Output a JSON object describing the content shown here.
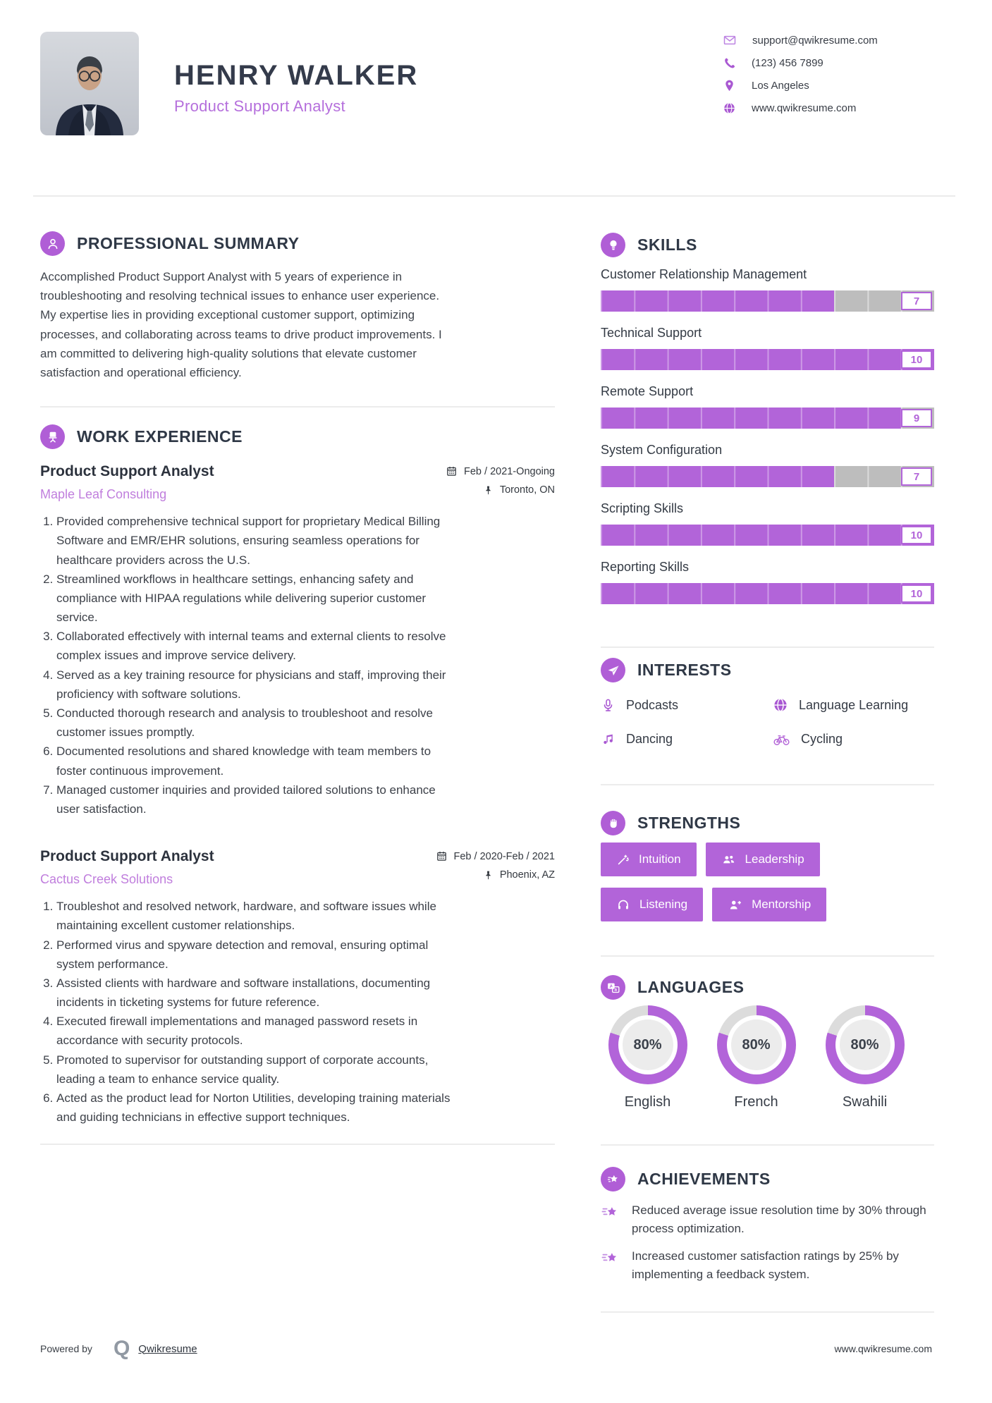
{
  "header": {
    "name": "HENRY WALKER",
    "title": "Product Support Analyst",
    "contacts": [
      {
        "icon": "email-icon",
        "text": "support@qwikresume.com"
      },
      {
        "icon": "phone-icon",
        "text": "(123) 456 7899"
      },
      {
        "icon": "location-icon",
        "text": "Los Angeles"
      },
      {
        "icon": "website-icon",
        "text": "www.qwikresume.com"
      }
    ]
  },
  "summary": {
    "heading": "PROFESSIONAL SUMMARY",
    "text": "Accomplished Product Support Analyst with 5 years of experience in troubleshooting and resolving technical issues to enhance user experience. My expertise lies in providing exceptional customer support, optimizing processes, and collaborating across teams to drive product improvements. I am committed to delivering high-quality solutions that elevate customer satisfaction and operational efficiency."
  },
  "work": {
    "heading": "WORK EXPERIENCE",
    "jobs": [
      {
        "title": "Product Support Analyst",
        "company": "Maple Leaf Consulting",
        "date": "Feb / 2021-Ongoing",
        "location": "Toronto, ON",
        "bullets": [
          "Provided comprehensive technical support for proprietary Medical Billing Software and EMR/EHR solutions, ensuring seamless operations for healthcare providers across the U.S.",
          "Streamlined workflows in healthcare settings, enhancing safety and compliance with HIPAA regulations while delivering superior customer service.",
          "Collaborated effectively with internal teams and external clients to resolve complex issues and improve service delivery.",
          "Served as a key training resource for physicians and staff, improving their proficiency with software solutions.",
          "Conducted thorough research and analysis to troubleshoot and resolve customer issues promptly.",
          "Documented resolutions and shared knowledge with team members to foster continuous improvement.",
          "Managed customer inquiries and provided tailored solutions to enhance user satisfaction."
        ]
      },
      {
        "title": "Product Support Analyst",
        "company": "Cactus Creek Solutions",
        "date": "Feb / 2020-Feb / 2021",
        "location": "Phoenix, AZ",
        "bullets": [
          "Troubleshot and resolved network, hardware, and software issues while maintaining excellent customer relationships.",
          "Performed virus and spyware detection and removal, ensuring optimal system performance.",
          "Assisted clients with hardware and software installations, documenting incidents in ticketing systems for future reference.",
          "Executed firewall implementations and managed password resets in accordance with security protocols.",
          "Promoted to supervisor for outstanding support of corporate accounts, leading a team to enhance service quality.",
          "Acted as the product lead for Norton Utilities, developing training materials and guiding technicians in effective support techniques."
        ]
      }
    ]
  },
  "skills": {
    "heading": "SKILLS",
    "max": 10,
    "items": [
      {
        "name": "Customer Relationship Management",
        "level": 7
      },
      {
        "name": "Technical Support",
        "level": 10
      },
      {
        "name": "Remote Support",
        "level": 9
      },
      {
        "name": "System Configuration",
        "level": 7
      },
      {
        "name": "Scripting Skills",
        "level": 10
      },
      {
        "name": "Reporting Skills",
        "level": 10
      }
    ]
  },
  "interests": {
    "heading": "INTERESTS",
    "items": [
      {
        "icon": "microphone-icon",
        "label": "Podcasts"
      },
      {
        "icon": "globe-icon",
        "label": "Language Learning"
      },
      {
        "icon": "music-note-icon",
        "label": "Dancing"
      },
      {
        "icon": "bicycle-icon",
        "label": "Cycling"
      }
    ]
  },
  "strengths": {
    "heading": "STRENGTHS",
    "items": [
      {
        "icon": "wand-icon",
        "label": "Intuition"
      },
      {
        "icon": "users-icon",
        "label": "Leadership"
      },
      {
        "icon": "headphones-icon",
        "label": "Listening"
      },
      {
        "icon": "person-plus-icon",
        "label": "Mentorship"
      }
    ]
  },
  "languages": {
    "heading": "LANGUAGES",
    "items": [
      {
        "name": "English",
        "percent": 80,
        "percent_label": "80%"
      },
      {
        "name": "French",
        "percent": 80,
        "percent_label": "80%"
      },
      {
        "name": "Swahili",
        "percent": 80,
        "percent_label": "80%"
      }
    ]
  },
  "achievements": {
    "heading": "ACHIEVEMENTS",
    "items": [
      "Reduced average issue resolution time by 30% through process optimization.",
      "Increased customer satisfaction ratings by 25% by implementing a feedback system."
    ]
  },
  "footer": {
    "powered_by": "Powered by",
    "brand": "Qwikresume",
    "website": "www.qwikresume.com"
  },
  "colors": {
    "accent": "#b264d9",
    "accent_dark": "#a958d2",
    "heading_text": "#2f3846",
    "body_text": "#3d4149",
    "bar_track": "#bdbdbd",
    "donut_rest": "#dcdcdc"
  }
}
